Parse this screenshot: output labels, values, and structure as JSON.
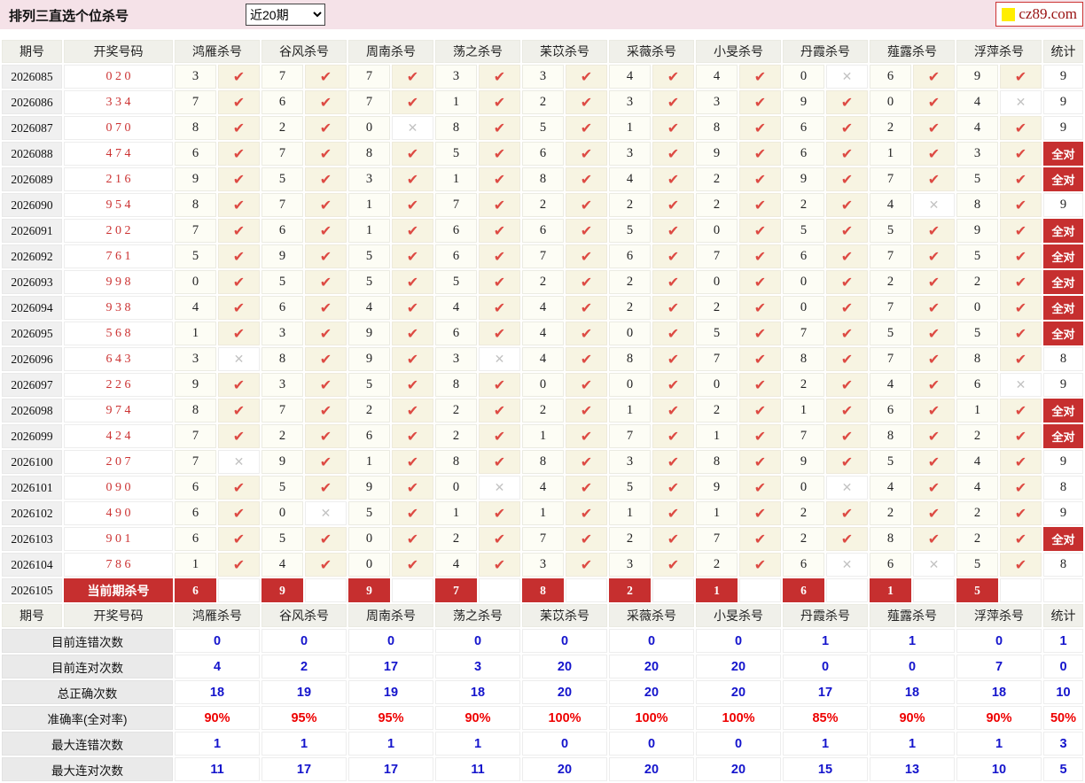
{
  "topbar": {
    "title": "排列三直选个位杀号",
    "range_value": "近20期",
    "logo_text": "cz89.com"
  },
  "colors": {
    "accent_red": "#c62f2f",
    "check_red": "#dd4a43",
    "cross_gray": "#c3c3c3",
    "stat_blue": "#1414cc",
    "stat_red": "#ee0000",
    "draw_red": "#cc3333",
    "topbar_pink": "#f5e2e8",
    "logo_yellow": "#ffee00"
  },
  "table": {
    "col_headers": [
      "期号",
      "开奖号码",
      "鸿雁杀号",
      "谷风杀号",
      "周南杀号",
      "荡之杀号",
      "苿苡杀号",
      "采薇杀号",
      "小旻杀号",
      "丹霞杀号",
      "薤露杀号",
      "浮萍杀号",
      "统计"
    ],
    "all_correct_label": "全对",
    "check_icon": "✔",
    "cross_icon": "✕",
    "rows": [
      {
        "period": "2026085",
        "draw": "020",
        "kills": [
          [
            "3",
            true
          ],
          [
            "7",
            true
          ],
          [
            "7",
            true
          ],
          [
            "3",
            true
          ],
          [
            "3",
            true
          ],
          [
            "4",
            true
          ],
          [
            "4",
            true
          ],
          [
            "0",
            false
          ],
          [
            "6",
            true
          ],
          [
            "9",
            true
          ]
        ],
        "stat": "9"
      },
      {
        "period": "2026086",
        "draw": "334",
        "kills": [
          [
            "7",
            true
          ],
          [
            "6",
            true
          ],
          [
            "7",
            true
          ],
          [
            "1",
            true
          ],
          [
            "2",
            true
          ],
          [
            "3",
            true
          ],
          [
            "3",
            true
          ],
          [
            "9",
            true
          ],
          [
            "0",
            true
          ],
          [
            "4",
            false
          ]
        ],
        "stat": "9"
      },
      {
        "period": "2026087",
        "draw": "070",
        "kills": [
          [
            "8",
            true
          ],
          [
            "2",
            true
          ],
          [
            "0",
            false
          ],
          [
            "8",
            true
          ],
          [
            "5",
            true
          ],
          [
            "1",
            true
          ],
          [
            "8",
            true
          ],
          [
            "6",
            true
          ],
          [
            "2",
            true
          ],
          [
            "4",
            true
          ]
        ],
        "stat": "9"
      },
      {
        "period": "2026088",
        "draw": "474",
        "kills": [
          [
            "6",
            true
          ],
          [
            "7",
            true
          ],
          [
            "8",
            true
          ],
          [
            "5",
            true
          ],
          [
            "6",
            true
          ],
          [
            "3",
            true
          ],
          [
            "9",
            true
          ],
          [
            "6",
            true
          ],
          [
            "1",
            true
          ],
          [
            "3",
            true
          ]
        ],
        "stat": "全对"
      },
      {
        "period": "2026089",
        "draw": "216",
        "kills": [
          [
            "9",
            true
          ],
          [
            "5",
            true
          ],
          [
            "3",
            true
          ],
          [
            "1",
            true
          ],
          [
            "8",
            true
          ],
          [
            "4",
            true
          ],
          [
            "2",
            true
          ],
          [
            "9",
            true
          ],
          [
            "7",
            true
          ],
          [
            "5",
            true
          ]
        ],
        "stat": "全对"
      },
      {
        "period": "2026090",
        "draw": "954",
        "kills": [
          [
            "8",
            true
          ],
          [
            "7",
            true
          ],
          [
            "1",
            true
          ],
          [
            "7",
            true
          ],
          [
            "2",
            true
          ],
          [
            "2",
            true
          ],
          [
            "2",
            true
          ],
          [
            "2",
            true
          ],
          [
            "4",
            false
          ],
          [
            "8",
            true
          ]
        ],
        "stat": "9"
      },
      {
        "period": "2026091",
        "draw": "202",
        "kills": [
          [
            "7",
            true
          ],
          [
            "6",
            true
          ],
          [
            "1",
            true
          ],
          [
            "6",
            true
          ],
          [
            "6",
            true
          ],
          [
            "5",
            true
          ],
          [
            "0",
            true
          ],
          [
            "5",
            true
          ],
          [
            "5",
            true
          ],
          [
            "9",
            true
          ]
        ],
        "stat": "全对"
      },
      {
        "period": "2026092",
        "draw": "761",
        "kills": [
          [
            "5",
            true
          ],
          [
            "9",
            true
          ],
          [
            "5",
            true
          ],
          [
            "6",
            true
          ],
          [
            "7",
            true
          ],
          [
            "6",
            true
          ],
          [
            "7",
            true
          ],
          [
            "6",
            true
          ],
          [
            "7",
            true
          ],
          [
            "5",
            true
          ]
        ],
        "stat": "全对"
      },
      {
        "period": "2026093",
        "draw": "998",
        "kills": [
          [
            "0",
            true
          ],
          [
            "5",
            true
          ],
          [
            "5",
            true
          ],
          [
            "5",
            true
          ],
          [
            "2",
            true
          ],
          [
            "2",
            true
          ],
          [
            "0",
            true
          ],
          [
            "0",
            true
          ],
          [
            "2",
            true
          ],
          [
            "2",
            true
          ]
        ],
        "stat": "全对"
      },
      {
        "period": "2026094",
        "draw": "938",
        "kills": [
          [
            "4",
            true
          ],
          [
            "6",
            true
          ],
          [
            "4",
            true
          ],
          [
            "4",
            true
          ],
          [
            "4",
            true
          ],
          [
            "2",
            true
          ],
          [
            "2",
            true
          ],
          [
            "0",
            true
          ],
          [
            "7",
            true
          ],
          [
            "0",
            true
          ]
        ],
        "stat": "全对"
      },
      {
        "period": "2026095",
        "draw": "568",
        "kills": [
          [
            "1",
            true
          ],
          [
            "3",
            true
          ],
          [
            "9",
            true
          ],
          [
            "6",
            true
          ],
          [
            "4",
            true
          ],
          [
            "0",
            true
          ],
          [
            "5",
            true
          ],
          [
            "7",
            true
          ],
          [
            "5",
            true
          ],
          [
            "5",
            true
          ]
        ],
        "stat": "全对"
      },
      {
        "period": "2026096",
        "draw": "643",
        "kills": [
          [
            "3",
            false
          ],
          [
            "8",
            true
          ],
          [
            "9",
            true
          ],
          [
            "3",
            false
          ],
          [
            "4",
            true
          ],
          [
            "8",
            true
          ],
          [
            "7",
            true
          ],
          [
            "8",
            true
          ],
          [
            "7",
            true
          ],
          [
            "8",
            true
          ]
        ],
        "stat": "8"
      },
      {
        "period": "2026097",
        "draw": "226",
        "kills": [
          [
            "9",
            true
          ],
          [
            "3",
            true
          ],
          [
            "5",
            true
          ],
          [
            "8",
            true
          ],
          [
            "0",
            true
          ],
          [
            "0",
            true
          ],
          [
            "0",
            true
          ],
          [
            "2",
            true
          ],
          [
            "4",
            true
          ],
          [
            "6",
            false
          ]
        ],
        "stat": "9"
      },
      {
        "period": "2026098",
        "draw": "974",
        "kills": [
          [
            "8",
            true
          ],
          [
            "7",
            true
          ],
          [
            "2",
            true
          ],
          [
            "2",
            true
          ],
          [
            "2",
            true
          ],
          [
            "1",
            true
          ],
          [
            "2",
            true
          ],
          [
            "1",
            true
          ],
          [
            "6",
            true
          ],
          [
            "1",
            true
          ]
        ],
        "stat": "全对"
      },
      {
        "period": "2026099",
        "draw": "424",
        "kills": [
          [
            "7",
            true
          ],
          [
            "2",
            true
          ],
          [
            "6",
            true
          ],
          [
            "2",
            true
          ],
          [
            "1",
            true
          ],
          [
            "7",
            true
          ],
          [
            "1",
            true
          ],
          [
            "7",
            true
          ],
          [
            "8",
            true
          ],
          [
            "2",
            true
          ]
        ],
        "stat": "全对"
      },
      {
        "period": "2026100",
        "draw": "207",
        "kills": [
          [
            "7",
            false
          ],
          [
            "9",
            true
          ],
          [
            "1",
            true
          ],
          [
            "8",
            true
          ],
          [
            "8",
            true
          ],
          [
            "3",
            true
          ],
          [
            "8",
            true
          ],
          [
            "9",
            true
          ],
          [
            "5",
            true
          ],
          [
            "4",
            true
          ]
        ],
        "stat": "9"
      },
      {
        "period": "2026101",
        "draw": "090",
        "kills": [
          [
            "6",
            true
          ],
          [
            "5",
            true
          ],
          [
            "9",
            true
          ],
          [
            "0",
            false
          ],
          [
            "4",
            true
          ],
          [
            "5",
            true
          ],
          [
            "9",
            true
          ],
          [
            "0",
            false
          ],
          [
            "4",
            true
          ],
          [
            "4",
            true
          ]
        ],
        "stat": "8"
      },
      {
        "period": "2026102",
        "draw": "490",
        "kills": [
          [
            "6",
            true
          ],
          [
            "0",
            false
          ],
          [
            "5",
            true
          ],
          [
            "1",
            true
          ],
          [
            "1",
            true
          ],
          [
            "1",
            true
          ],
          [
            "1",
            true
          ],
          [
            "2",
            true
          ],
          [
            "2",
            true
          ],
          [
            "2",
            true
          ]
        ],
        "stat": "9"
      },
      {
        "period": "2026103",
        "draw": "901",
        "kills": [
          [
            "6",
            true
          ],
          [
            "5",
            true
          ],
          [
            "0",
            true
          ],
          [
            "2",
            true
          ],
          [
            "7",
            true
          ],
          [
            "2",
            true
          ],
          [
            "7",
            true
          ],
          [
            "2",
            true
          ],
          [
            "8",
            true
          ],
          [
            "2",
            true
          ]
        ],
        "stat": "全对"
      },
      {
        "period": "2026104",
        "draw": "786",
        "kills": [
          [
            "1",
            true
          ],
          [
            "4",
            true
          ],
          [
            "0",
            true
          ],
          [
            "4",
            true
          ],
          [
            "3",
            true
          ],
          [
            "3",
            true
          ],
          [
            "2",
            true
          ],
          [
            "6",
            false
          ],
          [
            "6",
            false
          ],
          [
            "5",
            true
          ]
        ],
        "stat": "8"
      }
    ],
    "current_row": {
      "period": "2026105",
      "label": "当前期杀号",
      "kills": [
        "6",
        "9",
        "9",
        "7",
        "8",
        "2",
        "1",
        "6",
        "1",
        "5"
      ]
    },
    "stat_rows": [
      {
        "label": "目前连错次数",
        "style": "blue",
        "values": [
          "0",
          "0",
          "0",
          "0",
          "0",
          "0",
          "0",
          "1",
          "1",
          "0",
          "1"
        ]
      },
      {
        "label": "目前连对次数",
        "style": "blue",
        "values": [
          "4",
          "2",
          "17",
          "3",
          "20",
          "20",
          "20",
          "0",
          "0",
          "7",
          "0"
        ]
      },
      {
        "label": "总正确次数",
        "style": "blue",
        "values": [
          "18",
          "19",
          "19",
          "18",
          "20",
          "20",
          "20",
          "17",
          "18",
          "18",
          "10"
        ]
      },
      {
        "label": "准确率(全对率)",
        "style": "red",
        "values": [
          "90%",
          "95%",
          "95%",
          "90%",
          "100%",
          "100%",
          "100%",
          "85%",
          "90%",
          "90%",
          "50%"
        ]
      },
      {
        "label": "最大连错次数",
        "style": "blue",
        "values": [
          "1",
          "1",
          "1",
          "1",
          "0",
          "0",
          "0",
          "1",
          "1",
          "1",
          "3"
        ]
      },
      {
        "label": "最大连对次数",
        "style": "blue",
        "values": [
          "11",
          "17",
          "17",
          "11",
          "20",
          "20",
          "20",
          "15",
          "13",
          "10",
          "5"
        ]
      }
    ]
  }
}
